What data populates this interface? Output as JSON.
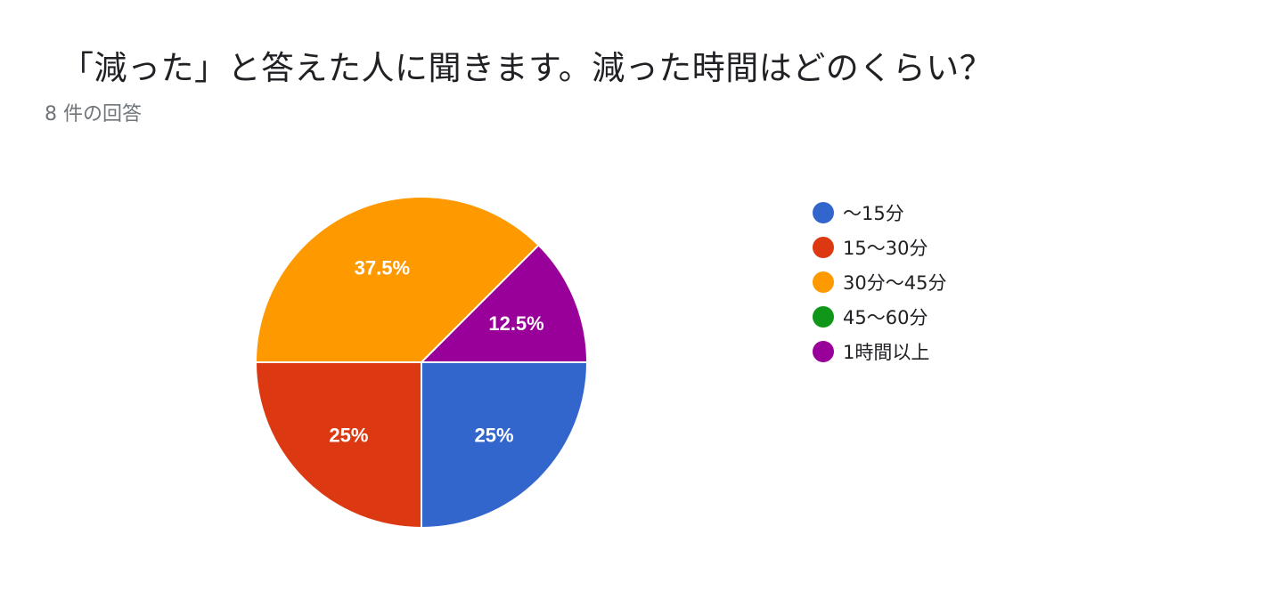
{
  "title": "「減った」と答えた人に聞きます。減った時間はどのくらい？",
  "subtitle": "8 件の回答",
  "chart_data": {
    "type": "pie",
    "legend_position": "right",
    "categories": [
      "〜15分",
      "15〜30分",
      "30分〜45分",
      "45〜60分",
      "1時間以上"
    ],
    "values": [
      25,
      25,
      37.5,
      0,
      12.5
    ],
    "labels": [
      "25%",
      "25%",
      "37.5%",
      "",
      "12.5%"
    ],
    "colors": [
      "#3366cc",
      "#dc3912",
      "#ff9900",
      "#109618",
      "#990099"
    ]
  }
}
